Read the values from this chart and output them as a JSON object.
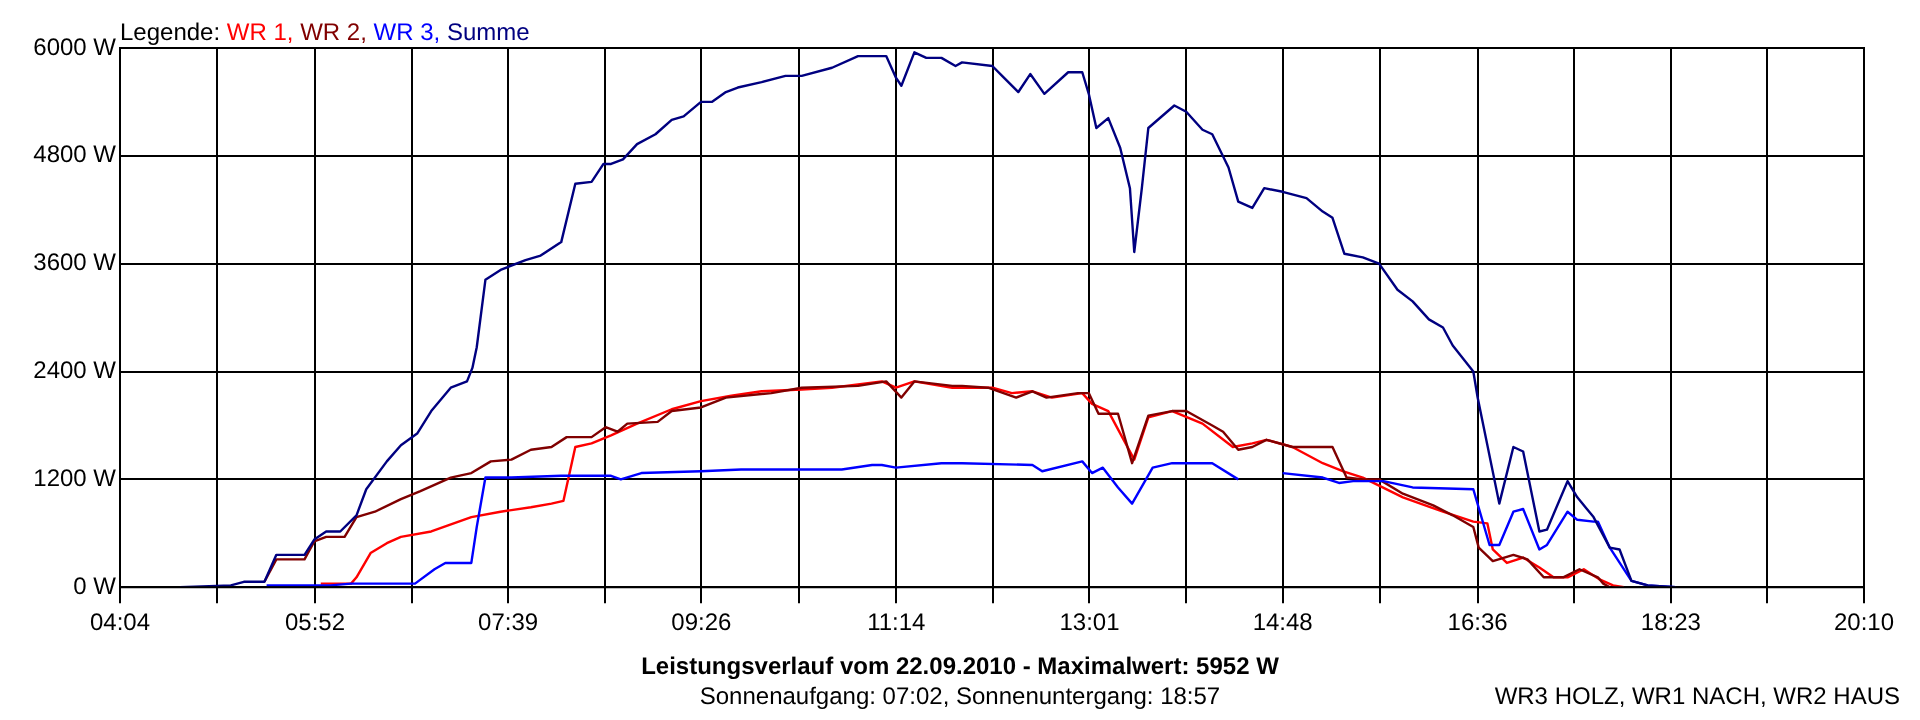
{
  "chart_data": {
    "type": "line",
    "title": "Leistungsverlauf vom 22.09.2010 - Maximalwert: 5952 W",
    "subtitle": "Sonnenaufgang: 07:02, Sonnenuntergang: 18:57",
    "legend_title": "Legende:",
    "annotations": [
      "WR3 HOLZ, WR1 NACH, WR2 HAUS"
    ],
    "xlim": [
      4.0667,
      20.1667
    ],
    "xticks": [
      {
        "value": 4.0667,
        "label": "04:04"
      },
      {
        "value": 4.9667,
        "label": null
      },
      {
        "value": 5.8667,
        "label": "05:52"
      },
      {
        "value": 6.7583,
        "label": null
      },
      {
        "value": 7.65,
        "label": "07:39"
      },
      {
        "value": 8.5417,
        "label": null
      },
      {
        "value": 9.4333,
        "label": "09:26"
      },
      {
        "value": 10.3333,
        "label": null
      },
      {
        "value": 11.2333,
        "label": "11:14"
      },
      {
        "value": 12.125,
        "label": null
      },
      {
        "value": 13.0167,
        "label": "13:01"
      },
      {
        "value": 13.9083,
        "label": null
      },
      {
        "value": 14.8,
        "label": "14:48"
      },
      {
        "value": 15.7,
        "label": null
      },
      {
        "value": 16.6,
        "label": "16:36"
      },
      {
        "value": 17.4917,
        "label": null
      },
      {
        "value": 18.3833,
        "label": "18:23"
      },
      {
        "value": 19.275,
        "label": null
      },
      {
        "value": 20.1667,
        "label": "20:10"
      }
    ],
    "ylim": [
      0,
      6000
    ],
    "yticks": [
      {
        "value": 0,
        "label": "0 W"
      },
      {
        "value": 1200,
        "label": "1200 W"
      },
      {
        "value": 2400,
        "label": "2400 W"
      },
      {
        "value": 3600,
        "label": "3600 W"
      },
      {
        "value": 4800,
        "label": "4800 W"
      },
      {
        "value": 6000,
        "label": "6000 W"
      }
    ],
    "grid": true,
    "legend": "top left",
    "marker": "none",
    "line_style": "solid",
    "series": [
      {
        "name": "WR 1,",
        "color": "#ff0000",
        "x": [
          5.92,
          6.2,
          6.25,
          6.38,
          6.53,
          6.66,
          6.94,
          7.31,
          7.58,
          7.86,
          8.05,
          8.16,
          8.27,
          8.42,
          8.6,
          8.84,
          9.16,
          9.43,
          9.71,
          9.99,
          10.36,
          10.64,
          11.1,
          11.23,
          11.4,
          11.75,
          12.12,
          12.3,
          12.49,
          12.67,
          12.95,
          13.04,
          13.19,
          13.43,
          13.56,
          13.78,
          14.06,
          14.34,
          14.52,
          14.65,
          14.89,
          15.17,
          15.36,
          15.54,
          15.91,
          16.28,
          16.56,
          16.69,
          16.74,
          16.87,
          17.02,
          17.17,
          17.3,
          17.43,
          17.58,
          17.72,
          17.85,
          17.95
        ],
        "values": [
          40,
          40,
          110,
          380,
          490,
          560,
          620,
          780,
          840,
          890,
          930,
          960,
          1560,
          1600,
          1690,
          1820,
          1980,
          2070,
          2130,
          2180,
          2200,
          2220,
          2290,
          2220,
          2290,
          2220,
          2220,
          2160,
          2180,
          2110,
          2160,
          2040,
          1960,
          1420,
          1890,
          1960,
          1820,
          1560,
          1600,
          1640,
          1560,
          1380,
          1290,
          1220,
          1000,
          840,
          730,
          710,
          420,
          270,
          330,
          220,
          110,
          110,
          200,
          90,
          20,
          0
        ]
      },
      {
        "name": "WR 2,",
        "color": "#800000",
        "x": [
          5.4,
          5.51,
          5.77,
          5.86,
          5.97,
          6.14,
          6.25,
          6.42,
          6.66,
          6.84,
          7.12,
          7.31,
          7.49,
          7.68,
          7.86,
          8.05,
          8.19,
          8.42,
          8.55,
          8.66,
          8.75,
          9.03,
          9.16,
          9.43,
          9.66,
          10.08,
          10.36,
          10.88,
          11.14,
          11.28,
          11.4,
          11.75,
          11.84,
          12.08,
          12.34,
          12.49,
          12.62,
          12.91,
          13.01,
          13.1,
          13.28,
          13.41,
          13.56,
          13.78,
          13.91,
          14.15,
          14.25,
          14.39,
          14.52,
          14.65,
          14.89,
          15.26,
          15.39,
          15.54,
          15.69,
          15.91,
          16.19,
          16.37,
          16.56,
          16.61,
          16.74,
          16.93,
          17.06,
          17.21,
          17.39,
          17.54,
          17.71,
          17.76,
          17.82
        ],
        "values": [
          60,
          310,
          310,
          510,
          560,
          560,
          780,
          840,
          980,
          1070,
          1220,
          1270,
          1400,
          1420,
          1530,
          1560,
          1670,
          1670,
          1780,
          1730,
          1820,
          1840,
          1960,
          2000,
          2110,
          2160,
          2220,
          2240,
          2290,
          2110,
          2290,
          2240,
          2240,
          2220,
          2110,
          2180,
          2110,
          2160,
          2160,
          1930,
          1930,
          1380,
          1910,
          1960,
          1960,
          1800,
          1730,
          1530,
          1560,
          1640,
          1560,
          1560,
          1220,
          1200,
          1200,
          1040,
          910,
          800,
          670,
          440,
          290,
          360,
          310,
          110,
          110,
          200,
          110,
          40,
          0
        ]
      },
      {
        "name": "WR 3,",
        "color": "#0000ff",
        "x": [
          5.42,
          6.01,
          6.2,
          6.66,
          6.79,
          6.97,
          7.07,
          7.31,
          7.36,
          7.44,
          7.68,
          8.14,
          8.6,
          8.69,
          8.88,
          9.43,
          9.8,
          10.73,
          11.01,
          11.1,
          11.23,
          11.65,
          11.84,
          12.49,
          12.58,
          12.95,
          13.04,
          13.14,
          13.28,
          13.41,
          13.6,
          13.78,
          14.15,
          14.39,
          14.58,
          14.8,
          15.17,
          15.32,
          15.45,
          15.73,
          16.0,
          16.56,
          16.71,
          16.8,
          16.93,
          17.02,
          17.17,
          17.24,
          17.43,
          17.52,
          17.67,
          17.71,
          17.82,
          18.02,
          18.17,
          18.43
        ],
        "values": [
          20,
          20,
          40,
          40,
          40,
          200,
          270,
          270,
          670,
          1220,
          1220,
          1240,
          1240,
          1200,
          1270,
          1290,
          1310,
          1310,
          1360,
          1360,
          1330,
          1380,
          1380,
          1360,
          1290,
          1400,
          1270,
          1330,
          1110,
          930,
          1330,
          1380,
          1380,
          1200,
          null,
          1270,
          1220,
          1160,
          1180,
          1180,
          1110,
          1090,
          470,
          470,
          840,
          870,
          420,
          470,
          840,
          750,
          730,
          730,
          440,
          70,
          20,
          0
        ]
      },
      {
        "name": "Summe",
        "color": "#000080",
        "x": [
          4.62,
          5.09,
          5.21,
          5.4,
          5.51,
          5.77,
          5.86,
          5.97,
          6.1,
          6.25,
          6.34,
          6.53,
          6.66,
          6.81,
          6.94,
          7.12,
          7.27,
          7.32,
          7.36,
          7.44,
          7.58,
          7.64,
          7.81,
          7.95,
          8.14,
          8.27,
          8.42,
          8.53,
          8.6,
          8.71,
          8.84,
          9.01,
          9.16,
          9.27,
          9.43,
          9.53,
          9.66,
          9.77,
          9.99,
          10.21,
          10.36,
          10.64,
          10.88,
          11.14,
          11.23,
          11.28,
          11.4,
          11.51,
          11.65,
          11.78,
          11.84,
          12.12,
          12.21,
          12.36,
          12.47,
          12.6,
          12.82,
          12.95,
          13.01,
          13.08,
          13.19,
          13.3,
          13.39,
          13.43,
          13.5,
          13.56,
          13.8,
          13.91,
          14.06,
          14.15,
          14.3,
          14.39,
          14.52,
          14.63,
          14.8,
          15.02,
          15.17,
          15.26,
          15.37,
          15.54,
          15.69,
          15.86,
          16.0,
          16.15,
          16.28,
          16.37,
          16.56,
          16.6,
          16.8,
          16.93,
          17.02,
          17.17,
          17.24,
          17.43,
          17.52,
          17.67,
          17.82,
          17.91,
          18.02,
          18.17,
          18.43
        ],
        "values": [
          0,
          20,
          60,
          60,
          360,
          360,
          530,
          620,
          620,
          800,
          1090,
          1400,
          1580,
          1710,
          1960,
          2220,
          2290,
          2440,
          2670,
          3420,
          3530,
          3560,
          3640,
          3690,
          3840,
          4490,
          4510,
          4710,
          4710,
          4760,
          4930,
          5040,
          5200,
          5240,
          5400,
          5400,
          5510,
          5560,
          5620,
          5690,
          5690,
          5780,
          5910,
          5910,
          5670,
          5580,
          5952,
          5890,
          5890,
          5800,
          5840,
          5800,
          5690,
          5510,
          5710,
          5490,
          5730,
          5730,
          5490,
          5110,
          5220,
          4890,
          4440,
          3730,
          4440,
          5110,
          5360,
          5290,
          5090,
          5040,
          4670,
          4290,
          4220,
          4440,
          4400,
          4330,
          4180,
          4110,
          3710,
          3670,
          3600,
          3310,
          3180,
          2980,
          2890,
          2690,
          2400,
          2110,
          930,
          1560,
          1510,
          620,
          640,
          1180,
          1000,
          780,
          440,
          420,
          70,
          20,
          0
        ]
      }
    ]
  }
}
